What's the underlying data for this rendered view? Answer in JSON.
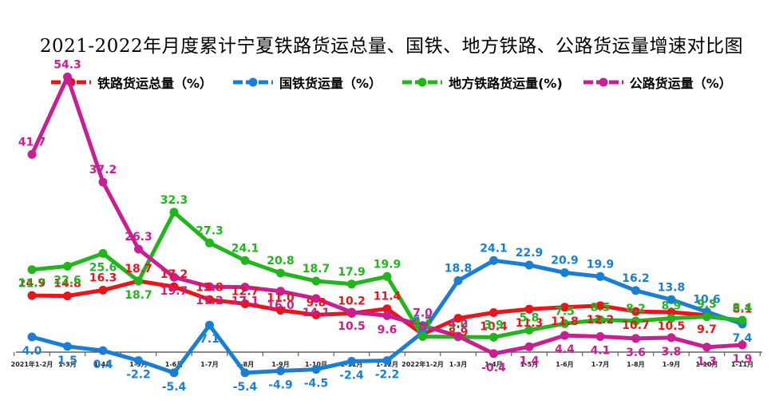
{
  "title": "2021-2022年月度累计宁夏铁路货运总量、国铁、地方铁路、公路货运量增速对比图",
  "chart_data": {
    "type": "line",
    "title": "2021-2022年月度累计宁夏铁路货运总量、国铁、地方铁路、公路货运量增速对比图",
    "categories": [
      "2021年1-2月",
      "1-3月",
      "1-4月",
      "1-5月",
      "1-6月",
      "1-7月",
      "1-8月",
      "1-9月",
      "1-10月",
      "1-11月",
      "1-12月",
      "2022年1-2月",
      "1-3月",
      "1-4月",
      "1-5月",
      "1-6月",
      "1-7月",
      "1-8月",
      "1-9月",
      "1-10月",
      "1-11月"
    ],
    "category_labels": [
      "2021年1-2月",
      "1-3月",
      "1-4月",
      "1-5月",
      "1-6月",
      "1-7月",
      "1-8月",
      "1-9月",
      "1-10月",
      "1-11月",
      "1-12月",
      "2022年1-2月",
      "1-3月",
      "1-4月",
      "1-5月",
      "1-6月",
      "1-7月",
      "1-8月",
      "1-9月",
      "1-10月",
      "1-11月"
    ],
    "legend_position": "top",
    "grid": false,
    "series": [
      {
        "name": "铁路货运总量（%）",
        "color": "#e8151b",
        "values": [
          14.9,
          14.8,
          16.3,
          18.7,
          17.2,
          13.8,
          12.7,
          11.0,
          9.8,
          10.2,
          11.4,
          4.7,
          8.9,
          10.4,
          11.3,
          11.8,
          12.2,
          10.7,
          10.5,
          9.7,
          8.1
        ]
      },
      {
        "name": "国铁货运量（%）",
        "color": "#1a7fd4",
        "values": [
          4.0,
          1.5,
          0.4,
          -2.2,
          -5.4,
          7.1,
          -5.4,
          -4.9,
          -4.5,
          -2.4,
          -2.2,
          5.2,
          18.8,
          24.1,
          22.9,
          20.9,
          19.9,
          16.2,
          13.8,
          10.6,
          7.4
        ]
      },
      {
        "name": "地方铁路货运量(%)",
        "color": "#22b51e",
        "values": [
          21.7,
          22.6,
          25.6,
          18.7,
          32.3,
          27.3,
          24.1,
          20.8,
          18.7,
          17.9,
          19.9,
          4.1,
          4.0,
          3.9,
          5.8,
          7.5,
          8.5,
          8.2,
          8.9,
          9.3,
          8.4
        ]
      },
      {
        "name": "公路货运量（%）",
        "color": "#c81f93",
        "values": [
          41.7,
          54.3,
          37.2,
          26.3,
          19.7,
          17.2,
          17.1,
          16.0,
          14.1,
          10.5,
          9.6,
          7.0,
          4.2,
          -0.4,
          1.4,
          4.4,
          4.1,
          3.6,
          3.8,
          1.3,
          1.9
        ]
      }
    ]
  }
}
